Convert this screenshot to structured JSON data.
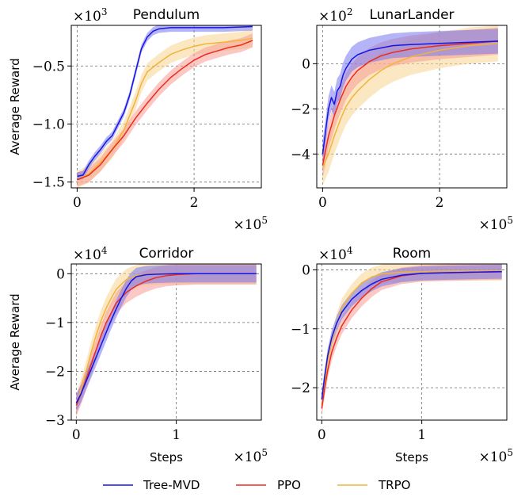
{
  "chart_data": [
    {
      "type": "line",
      "title": "Pendulum",
      "ylabel": "Average Reward",
      "xlabel": "",
      "x_multiplier": "×10^5",
      "y_multiplier": "×10^3",
      "xlim": [
        -0.1,
        3.15
      ],
      "ylim": [
        -1.55,
        -0.15
      ],
      "xticks": [
        0,
        2
      ],
      "xtick_labels": [
        "0",
        "2"
      ],
      "yticks": [
        -1.5,
        -1.0,
        -0.5
      ],
      "ytick_labels": [
        "−1.5",
        "−1.0",
        "−0.5"
      ],
      "grid": true,
      "series": [
        {
          "name": "Tree-MVD",
          "x": [
            0,
            0.1,
            0.2,
            0.3,
            0.4,
            0.5,
            0.6,
            0.7,
            0.8,
            0.9,
            1.0,
            1.1,
            1.2,
            1.3,
            1.4,
            1.6,
            2.0,
            2.5,
            3.0
          ],
          "y": [
            -1.45,
            -1.44,
            -1.35,
            -1.28,
            -1.22,
            -1.15,
            -1.1,
            -1.0,
            -0.9,
            -0.75,
            -0.55,
            -0.35,
            -0.25,
            -0.2,
            -0.18,
            -0.17,
            -0.17,
            -0.17,
            -0.16
          ]
        },
        {
          "name": "PPO",
          "x": [
            0,
            0.2,
            0.4,
            0.6,
            0.8,
            1.0,
            1.2,
            1.4,
            1.6,
            1.8,
            2.0,
            2.2,
            2.4,
            2.6,
            2.8,
            3.0
          ],
          "y": [
            -1.48,
            -1.44,
            -1.35,
            -1.22,
            -1.1,
            -0.95,
            -0.82,
            -0.7,
            -0.6,
            -0.52,
            -0.45,
            -0.4,
            -0.37,
            -0.34,
            -0.32,
            -0.28
          ]
        },
        {
          "name": "TRPO",
          "x": [
            0,
            0.2,
            0.4,
            0.6,
            0.8,
            1.0,
            1.1,
            1.2,
            1.4,
            1.6,
            1.8,
            2.0,
            2.2,
            2.4,
            2.6,
            2.8,
            3.0
          ],
          "y": [
            -1.48,
            -1.43,
            -1.33,
            -1.22,
            -1.05,
            -0.8,
            -0.65,
            -0.55,
            -0.47,
            -0.4,
            -0.36,
            -0.33,
            -0.31,
            -0.3,
            -0.29,
            -0.28,
            -0.26
          ]
        }
      ]
    },
    {
      "type": "line",
      "title": "LunarLander",
      "ylabel": "",
      "xlabel": "",
      "x_multiplier": "×10^5",
      "y_multiplier": "×10^2",
      "xlim": [
        -0.1,
        3.15
      ],
      "ylim": [
        -5.5,
        1.7
      ],
      "xticks": [
        0,
        2
      ],
      "xtick_labels": [
        "0",
        "2"
      ],
      "yticks": [
        -4,
        -2,
        0
      ],
      "ytick_labels": [
        "−4",
        "−2",
        "0"
      ],
      "grid": true,
      "series": [
        {
          "name": "Tree-MVD",
          "x": [
            0,
            0.05,
            0.1,
            0.15,
            0.2,
            0.25,
            0.3,
            0.35,
            0.4,
            0.5,
            0.6,
            0.8,
            1.0,
            1.2,
            1.5,
            2.0,
            2.5,
            3.0
          ],
          "y": [
            -4.0,
            -3.0,
            -2.0,
            -1.5,
            -1.8,
            -1.2,
            -1.0,
            -0.5,
            -0.2,
            0.2,
            0.4,
            0.6,
            0.7,
            0.8,
            0.85,
            0.9,
            0.95,
            1.0
          ]
        },
        {
          "name": "PPO",
          "x": [
            0,
            0.1,
            0.2,
            0.3,
            0.4,
            0.5,
            0.6,
            0.8,
            1.0,
            1.2,
            1.5,
            2.0,
            2.5,
            3.0
          ],
          "y": [
            -4.5,
            -3.2,
            -2.3,
            -1.6,
            -1.0,
            -0.6,
            -0.3,
            0.1,
            0.35,
            0.5,
            0.65,
            0.8,
            0.9,
            1.0
          ]
        },
        {
          "name": "TRPO",
          "x": [
            0,
            0.1,
            0.2,
            0.3,
            0.4,
            0.5,
            0.6,
            0.8,
            1.0,
            1.2,
            1.5,
            2.0,
            2.5,
            3.0
          ],
          "y": [
            -4.6,
            -4.0,
            -3.2,
            -2.5,
            -1.9,
            -1.5,
            -1.2,
            -0.7,
            -0.3,
            0.0,
            0.3,
            0.6,
            0.8,
            0.9
          ]
        }
      ]
    },
    {
      "type": "line",
      "title": "Corridor",
      "ylabel": "Average Reward",
      "xlabel": "Steps",
      "x_multiplier": "×10^5",
      "y_multiplier": "×10^4",
      "xlim": [
        -0.05,
        1.85
      ],
      "ylim": [
        -3.0,
        0.2
      ],
      "xticks": [
        0,
        1
      ],
      "xtick_labels": [
        "0",
        "1"
      ],
      "yticks": [
        -3,
        -2,
        -1,
        0
      ],
      "ytick_labels": [
        "−3",
        "−2",
        "−1",
        "0"
      ],
      "grid": true,
      "series": [
        {
          "name": "Tree-MVD",
          "x": [
            0,
            0.05,
            0.1,
            0.15,
            0.2,
            0.25,
            0.3,
            0.35,
            0.4,
            0.45,
            0.5,
            0.55,
            0.6,
            0.7,
            0.8,
            1.0,
            1.2,
            1.5,
            1.8
          ],
          "y": [
            -2.65,
            -2.45,
            -2.2,
            -1.95,
            -1.7,
            -1.45,
            -1.2,
            -0.95,
            -0.72,
            -0.5,
            -0.3,
            -0.15,
            -0.06,
            -0.02,
            -0.01,
            0.0,
            0.0,
            0.0,
            0.0
          ]
        },
        {
          "name": "PPO",
          "x": [
            0,
            0.05,
            0.1,
            0.15,
            0.2,
            0.25,
            0.3,
            0.35,
            0.4,
            0.5,
            0.6,
            0.7,
            0.8,
            0.9,
            1.0,
            1.2,
            1.5,
            1.8
          ],
          "y": [
            -2.7,
            -2.45,
            -2.15,
            -1.85,
            -1.55,
            -1.25,
            -1.0,
            -0.8,
            -0.6,
            -0.38,
            -0.25,
            -0.15,
            -0.08,
            -0.04,
            -0.02,
            0.0,
            0.0,
            0.0
          ]
        },
        {
          "name": "TRPO",
          "x": [
            0,
            0.05,
            0.1,
            0.15,
            0.2,
            0.25,
            0.3,
            0.35,
            0.4,
            0.5,
            0.6,
            0.7,
            0.8,
            1.0,
            1.2,
            1.5,
            1.8
          ],
          "y": [
            -2.7,
            -2.35,
            -2.0,
            -1.6,
            -1.25,
            -0.95,
            -0.7,
            -0.5,
            -0.32,
            -0.12,
            -0.04,
            -0.01,
            0.0,
            0.0,
            0.0,
            0.0,
            0.0
          ]
        }
      ]
    },
    {
      "type": "line",
      "title": "Room",
      "ylabel": "",
      "xlabel": "Steps",
      "x_multiplier": "×10^5",
      "y_multiplier": "×10^4",
      "xlim": [
        -0.05,
        1.85
      ],
      "ylim": [
        -2.55,
        0.1
      ],
      "xticks": [
        0,
        1
      ],
      "xtick_labels": [
        "0",
        "1"
      ],
      "yticks": [
        -2,
        -1,
        0
      ],
      "ytick_labels": [
        "−2",
        "−1",
        "0"
      ],
      "grid": true,
      "series": [
        {
          "name": "Tree-MVD",
          "x": [
            0,
            0.03,
            0.06,
            0.1,
            0.15,
            0.2,
            0.3,
            0.4,
            0.5,
            0.6,
            0.8,
            1.0,
            1.2,
            1.5,
            1.8
          ],
          "y": [
            -2.2,
            -1.8,
            -1.45,
            -1.15,
            -0.9,
            -0.72,
            -0.5,
            -0.35,
            -0.24,
            -0.16,
            -0.09,
            -0.06,
            -0.05,
            -0.04,
            -0.03
          ]
        },
        {
          "name": "PPO",
          "x": [
            0,
            0.03,
            0.06,
            0.1,
            0.15,
            0.2,
            0.3,
            0.4,
            0.5,
            0.6,
            0.8,
            1.0,
            1.2,
            1.5,
            1.8
          ],
          "y": [
            -2.35,
            -2.0,
            -1.7,
            -1.4,
            -1.15,
            -0.95,
            -0.68,
            -0.48,
            -0.32,
            -0.2,
            -0.1,
            -0.06,
            -0.05,
            -0.04,
            -0.03
          ]
        },
        {
          "name": "TRPO",
          "x": [
            0,
            0.03,
            0.06,
            0.1,
            0.15,
            0.2,
            0.3,
            0.4,
            0.5,
            0.6,
            0.8,
            1.0,
            1.2,
            1.5,
            1.8
          ],
          "y": [
            -2.3,
            -1.9,
            -1.55,
            -1.2,
            -0.9,
            -0.65,
            -0.4,
            -0.22,
            -0.12,
            -0.07,
            -0.04,
            -0.03,
            -0.02,
            -0.02,
            -0.02
          ]
        }
      ]
    }
  ],
  "legend": {
    "placement": "bottom",
    "entries": [
      {
        "label": "Tree-MVD",
        "color": "#1414e6"
      },
      {
        "label": "PPO",
        "color": "#ee2a1c"
      },
      {
        "label": "TRPO",
        "color": "#f2b33a"
      }
    ]
  },
  "colors": {
    "Tree-MVD": "#1414e6",
    "PPO": "#ee2a1c",
    "TRPO": "#f2b33a",
    "Tree-MVD-band": "#7777ee",
    "PPO-band": "#f79a92",
    "TRPO-band": "#f8d592"
  }
}
